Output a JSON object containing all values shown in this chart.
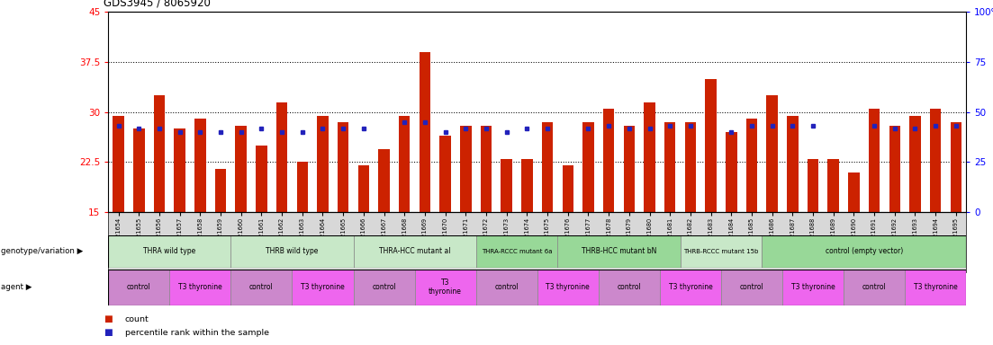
{
  "title": "GDS3945 / 8065920",
  "samples": [
    "GSM721654",
    "GSM721655",
    "GSM721656",
    "GSM721657",
    "GSM721658",
    "GSM721659",
    "GSM721660",
    "GSM721661",
    "GSM721662",
    "GSM721663",
    "GSM721664",
    "GSM721665",
    "GSM721666",
    "GSM721667",
    "GSM721668",
    "GSM721669",
    "GSM721670",
    "GSM721671",
    "GSM721672",
    "GSM721673",
    "GSM721674",
    "GSM721675",
    "GSM721676",
    "GSM721677",
    "GSM721678",
    "GSM721679",
    "GSM721680",
    "GSM721681",
    "GSM721682",
    "GSM721683",
    "GSM721684",
    "GSM721685",
    "GSM721686",
    "GSM721687",
    "GSM721688",
    "GSM721689",
    "GSM721690",
    "GSM721691",
    "GSM721692",
    "GSM721693",
    "GSM721694",
    "GSM721695"
  ],
  "bar_heights": [
    29.5,
    27.5,
    32.5,
    27.5,
    29.0,
    21.5,
    28.0,
    25.0,
    31.5,
    22.5,
    29.5,
    28.5,
    22.0,
    24.5,
    29.5,
    39.0,
    26.5,
    28.0,
    28.0,
    23.0,
    23.0,
    28.5,
    22.0,
    28.5,
    30.5,
    28.0,
    31.5,
    28.5,
    28.5,
    35.0,
    27.0,
    29.0,
    32.5,
    29.5,
    23.0,
    23.0,
    21.0,
    30.5,
    28.0,
    29.5,
    30.5,
    28.5
  ],
  "dot_values": [
    28.0,
    27.5,
    27.5,
    27.0,
    27.0,
    27.0,
    27.0,
    27.5,
    27.0,
    27.0,
    27.5,
    27.5,
    27.5,
    null,
    28.5,
    28.5,
    27.0,
    27.5,
    27.5,
    27.0,
    27.5,
    27.5,
    null,
    27.5,
    28.0,
    27.5,
    27.5,
    28.0,
    28.0,
    null,
    27.0,
    28.0,
    28.0,
    28.0,
    28.0,
    null,
    null,
    28.0,
    27.5,
    27.5,
    28.0,
    28.0
  ],
  "baseline": 15,
  "ylim_left": [
    15,
    45
  ],
  "ylim_right": [
    0,
    100
  ],
  "yticks_left": [
    15,
    22.5,
    30,
    37.5,
    45
  ],
  "yticks_right": [
    0,
    25,
    50,
    75,
    100
  ],
  "ytick_labels_left": [
    "15",
    "22.5",
    "30",
    "37.5",
    "45"
  ],
  "ytick_labels_right": [
    "0",
    "25",
    "50",
    "75",
    "100%"
  ],
  "hlines": [
    22.5,
    30,
    37.5
  ],
  "bar_color": "#CC2200",
  "dot_color": "#2222BB",
  "tick_bg_color": "#dddddd",
  "genotype_groups": [
    {
      "label": "THRA wild type",
      "start": 0,
      "end": 6,
      "color": "#c8e8c8"
    },
    {
      "label": "THRB wild type",
      "start": 6,
      "end": 12,
      "color": "#c8e8c8"
    },
    {
      "label": "THRA-HCC mutant al",
      "start": 12,
      "end": 18,
      "color": "#c8e8c8"
    },
    {
      "label": "THRA-RCCC mutant 6a",
      "start": 18,
      "end": 22,
      "color": "#98d898"
    },
    {
      "label": "THRB-HCC mutant bN",
      "start": 22,
      "end": 28,
      "color": "#98d898"
    },
    {
      "label": "THRB-RCCC mutant 15b",
      "start": 28,
      "end": 32,
      "color": "#c8e8c8"
    },
    {
      "label": "control (empty vector)",
      "start": 32,
      "end": 42,
      "color": "#98d898"
    }
  ],
  "agent_groups": [
    {
      "label": "control",
      "start": 0,
      "end": 3,
      "color": "#cc88cc"
    },
    {
      "label": "T3 thyronine",
      "start": 3,
      "end": 6,
      "color": "#ee66ee"
    },
    {
      "label": "control",
      "start": 6,
      "end": 9,
      "color": "#cc88cc"
    },
    {
      "label": "T3 thyronine",
      "start": 9,
      "end": 12,
      "color": "#ee66ee"
    },
    {
      "label": "control",
      "start": 12,
      "end": 15,
      "color": "#cc88cc"
    },
    {
      "label": "T3\nthyronine",
      "start": 15,
      "end": 18,
      "color": "#ee66ee"
    },
    {
      "label": "control",
      "start": 18,
      "end": 21,
      "color": "#cc88cc"
    },
    {
      "label": "T3 thyronine",
      "start": 21,
      "end": 24,
      "color": "#ee66ee"
    },
    {
      "label": "control",
      "start": 24,
      "end": 27,
      "color": "#cc88cc"
    },
    {
      "label": "T3 thyronine",
      "start": 27,
      "end": 30,
      "color": "#ee66ee"
    },
    {
      "label": "control",
      "start": 30,
      "end": 33,
      "color": "#cc88cc"
    },
    {
      "label": "T3 thyronine",
      "start": 33,
      "end": 36,
      "color": "#ee66ee"
    },
    {
      "label": "control",
      "start": 36,
      "end": 39,
      "color": "#cc88cc"
    },
    {
      "label": "T3 thyronine",
      "start": 39,
      "end": 42,
      "color": "#ee66ee"
    }
  ],
  "legend_count_color": "#CC2200",
  "legend_count_label": "count",
  "legend_pct_color": "#2222BB",
  "legend_pct_label": "percentile rank within the sample",
  "left_label_geno": "genotype/variation",
  "left_label_agent": "agent"
}
